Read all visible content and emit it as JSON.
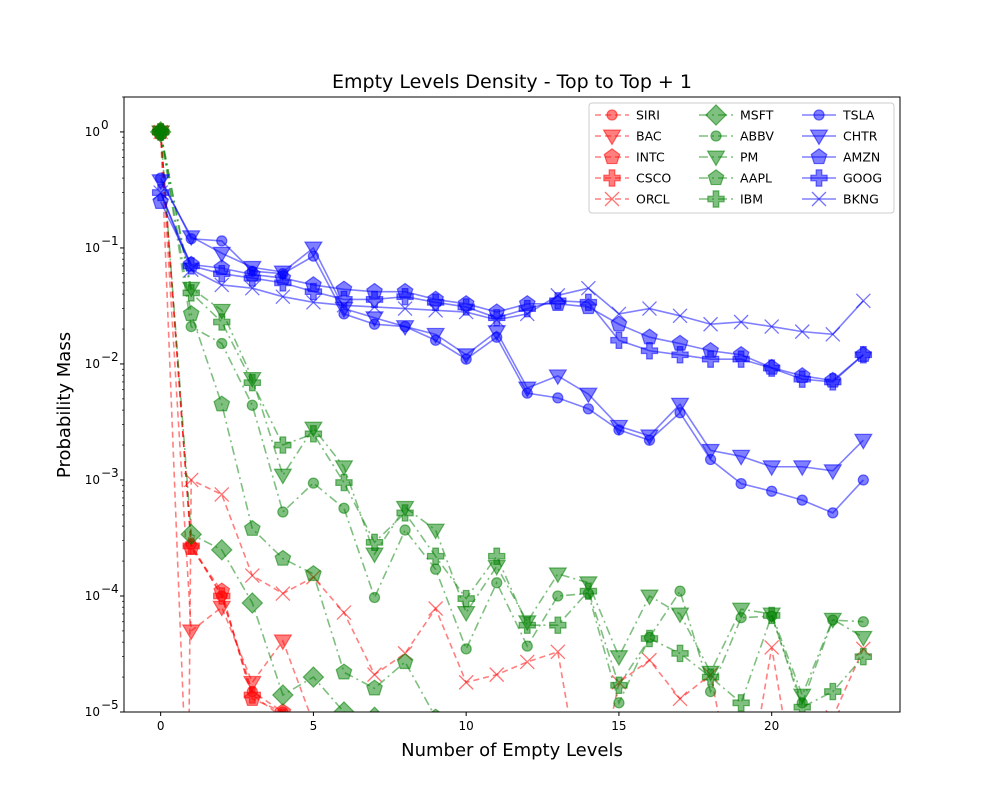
{
  "chart_data": {
    "type": "line",
    "title": "Empty Levels Density - Top to Top + 1",
    "xlabel": "Number of Empty Levels",
    "ylabel": "Probability Mass",
    "xlim": [
      -1.2,
      24.2
    ],
    "ylim": [
      1e-05,
      2
    ],
    "yscale": "log",
    "x_ticks": [
      0,
      5,
      10,
      15,
      20
    ],
    "y_ticks": [
      {
        "value": 1,
        "base": "10",
        "exp": "0"
      },
      {
        "value": 0.1,
        "base": "10",
        "exp": "−1"
      },
      {
        "value": 0.01,
        "base": "10",
        "exp": "−2"
      },
      {
        "value": 0.001,
        "base": "10",
        "exp": "−3"
      },
      {
        "value": 0.0001,
        "base": "10",
        "exp": "−4"
      },
      {
        "value": 1e-05,
        "base": "10",
        "exp": "−5"
      }
    ],
    "legend_position": "upper right",
    "series": [
      {
        "name": "SIRI",
        "color": "#ff0000",
        "dash": "dashed",
        "marker": "circle",
        "x": [
          0,
          1,
          2,
          3,
          4,
          5,
          6
        ],
        "y": [
          1.0,
          0.00028,
          0.0001,
          1.5e-05,
          1e-05,
          9e-06,
          8e-06
        ]
      },
      {
        "name": "BAC",
        "color": "#ff0000",
        "dash": "dashed",
        "marker": "triangle-down",
        "x": [
          0,
          1,
          2,
          3,
          4,
          5
        ],
        "y": [
          1.0,
          5e-05,
          8e-05,
          1.8e-05,
          4.1e-05,
          8e-06
        ]
      },
      {
        "name": "INTC",
        "color": "#ff0000",
        "dash": "dashed",
        "marker": "pentagon",
        "x": [
          0,
          1,
          2,
          3,
          4,
          5
        ],
        "y": [
          1.0,
          0.00026,
          0.00011,
          1.3e-05,
          1e-05,
          8e-06
        ]
      },
      {
        "name": "CSCO",
        "color": "#ff0000",
        "dash": "dashed",
        "marker": "plus",
        "x": [
          0,
          1,
          2,
          3,
          4,
          5
        ],
        "y": [
          1.0,
          0.00027,
          0.0001,
          1.4e-05,
          9e-06,
          8e-06
        ]
      },
      {
        "name": "ORCL",
        "color": "#ff0000",
        "dash": "dashed",
        "marker": "x",
        "x": [
          0,
          0.9,
          1,
          2,
          3,
          4,
          5,
          6,
          7,
          8,
          9,
          10,
          11,
          12,
          13,
          14,
          15,
          16,
          17,
          18,
          19,
          20,
          21,
          22,
          23
        ],
        "y": [
          1.0,
          1e-06,
          0.001,
          0.00075,
          0.00015,
          0.000105,
          0.000145,
          7.2e-05,
          2.1e-05,
          3.2e-05,
          7.8e-05,
          1.8e-05,
          2.1e-05,
          2.7e-05,
          3.3e-05,
          1e-06,
          1.8e-05,
          2.8e-05,
          1.3e-05,
          2.1e-05,
          1e-06,
          3.6e-05,
          1e-06,
          9e-06,
          3.5e-05
        ]
      },
      {
        "name": "MSFT",
        "color": "#008000",
        "dash": "dashdot",
        "marker": "diamond",
        "x": [
          0,
          1,
          2,
          3,
          4,
          5,
          6,
          7
        ],
        "y": [
          1.0,
          0.00034,
          0.00025,
          8.7e-05,
          1.4e-05,
          2e-05,
          1e-05,
          9e-06
        ]
      },
      {
        "name": "ABBV",
        "color": "#008000",
        "dash": "dashdot",
        "marker": "circle",
        "x": [
          0,
          1,
          2,
          3,
          4,
          5,
          6,
          7,
          8,
          9,
          10,
          11,
          12,
          13,
          14,
          15,
          16,
          17,
          18,
          19,
          20,
          21,
          22,
          23
        ],
        "y": [
          1.0,
          0.021,
          0.015,
          0.0044,
          0.00053,
          0.00094,
          0.00057,
          9.7e-05,
          0.00037,
          0.00017,
          3.5e-05,
          0.00013,
          3.7e-05,
          0.0001,
          0.000105,
          1.2e-05,
          4.4e-05,
          0.00011,
          1.5e-05,
          6.5e-05,
          6.7e-05,
          1.2e-05,
          6.2e-05,
          6e-05
        ]
      },
      {
        "name": "PM",
        "color": "#008000",
        "dash": "dashdot",
        "marker": "triangle-down",
        "x": [
          0,
          1,
          2,
          3,
          4,
          5,
          6,
          7,
          8,
          9,
          10,
          11,
          12,
          13,
          14,
          15,
          16,
          17,
          18,
          19,
          20,
          21,
          22,
          23
        ],
        "y": [
          1.0,
          0.045,
          0.029,
          0.0075,
          0.0011,
          0.0028,
          0.0013,
          0.00023,
          0.00058,
          0.00037,
          7.2e-05,
          0.00018,
          6e-05,
          0.000155,
          0.00013,
          3e-05,
          0.0001,
          7e-05,
          2.2e-05,
          7.7e-05,
          7e-05,
          1.4e-05,
          6.3e-05,
          4.4e-05
        ]
      },
      {
        "name": "AAPL",
        "color": "#008000",
        "dash": "dashdot",
        "marker": "pentagon",
        "x": [
          0,
          1,
          2,
          3,
          4,
          5,
          6,
          7,
          8,
          9,
          10
        ],
        "y": [
          1.0,
          0.027,
          0.0045,
          0.00038,
          0.00021,
          0.000155,
          2.2e-05,
          1.6e-05,
          2.7e-05,
          9e-06,
          1e-06
        ]
      },
      {
        "name": "IBM",
        "color": "#008000",
        "dash": "dashdot",
        "marker": "plus",
        "x": [
          0,
          1,
          2,
          3,
          4,
          5,
          6,
          7,
          8,
          9,
          10,
          11,
          12,
          13,
          14,
          15,
          16,
          17,
          18,
          19,
          20,
          21,
          22,
          23
        ],
        "y": [
          1.0,
          0.041,
          0.023,
          0.0069,
          0.002,
          0.0025,
          0.00095,
          0.00029,
          0.00052,
          0.00022,
          9.5e-05,
          0.00022,
          5.6e-05,
          5.6e-05,
          0.00011,
          1.7e-05,
          4.3e-05,
          3.2e-05,
          2e-05,
          1.2e-05,
          6.8e-05,
          1.1e-05,
          1.5e-05,
          3e-05
        ]
      },
      {
        "name": "TSLA",
        "color": "#0000ff",
        "dash": "solid",
        "marker": "circle",
        "x": [
          0,
          1,
          2,
          3,
          4,
          5,
          6,
          7,
          8,
          9,
          10,
          11,
          12,
          13,
          14,
          15,
          16,
          17,
          18,
          19,
          20,
          21,
          22,
          23
        ],
        "y": [
          0.4,
          0.12,
          0.115,
          0.063,
          0.06,
          0.085,
          0.027,
          0.022,
          0.021,
          0.016,
          0.011,
          0.017,
          0.0056,
          0.0051,
          0.0041,
          0.0027,
          0.0022,
          0.0038,
          0.0015,
          0.00093,
          0.0008,
          0.00067,
          0.00052,
          0.001
        ]
      },
      {
        "name": "CHTR",
        "color": "#0000ff",
        "dash": "solid",
        "marker": "triangle-down",
        "x": [
          0,
          1,
          2,
          3,
          4,
          5,
          6,
          7,
          8,
          9,
          10,
          11,
          12,
          13,
          14,
          15,
          16,
          17,
          18,
          19,
          20,
          21,
          22,
          23
        ],
        "y": [
          0.38,
          0.125,
          0.09,
          0.068,
          0.062,
          0.1,
          0.03,
          0.025,
          0.021,
          0.018,
          0.012,
          0.019,
          0.0062,
          0.0079,
          0.0055,
          0.0029,
          0.0024,
          0.0045,
          0.0018,
          0.0016,
          0.0013,
          0.0013,
          0.0012,
          0.0022
        ]
      },
      {
        "name": "AMZN",
        "color": "#0000ff",
        "dash": "solid",
        "marker": "pentagon",
        "x": [
          0,
          1,
          2,
          3,
          4,
          5,
          6,
          7,
          8,
          9,
          10,
          11,
          12,
          13,
          14,
          15,
          16,
          17,
          18,
          19,
          20,
          21,
          22,
          23
        ],
        "y": [
          0.25,
          0.072,
          0.067,
          0.059,
          0.055,
          0.048,
          0.044,
          0.042,
          0.042,
          0.036,
          0.033,
          0.028,
          0.033,
          0.033,
          0.031,
          0.022,
          0.017,
          0.015,
          0.013,
          0.012,
          0.0093,
          0.0079,
          0.0072,
          0.012
        ]
      },
      {
        "name": "GOOG",
        "color": "#0000ff",
        "dash": "solid",
        "marker": "plus",
        "x": [
          0,
          1,
          2,
          3,
          4,
          5,
          6,
          7,
          8,
          9,
          10,
          11,
          12,
          13,
          14,
          15,
          16,
          17,
          18,
          19,
          20,
          21,
          22,
          23
        ],
        "y": [
          0.3,
          0.07,
          0.06,
          0.055,
          0.05,
          0.042,
          0.036,
          0.036,
          0.038,
          0.034,
          0.031,
          0.025,
          0.03,
          0.035,
          0.034,
          0.016,
          0.013,
          0.012,
          0.011,
          0.011,
          0.0092,
          0.0074,
          0.007,
          0.012
        ]
      },
      {
        "name": "BKNG",
        "color": "#0000ff",
        "dash": "solid",
        "marker": "x",
        "x": [
          0,
          1,
          2,
          3,
          4,
          5,
          6,
          7,
          8,
          9,
          10,
          11,
          12,
          13,
          14,
          15,
          16,
          17,
          18,
          19,
          20,
          21,
          22,
          23
        ],
        "y": [
          0.3,
          0.065,
          0.048,
          0.045,
          0.038,
          0.034,
          0.032,
          0.031,
          0.03,
          0.029,
          0.028,
          0.024,
          0.027,
          0.039,
          0.045,
          0.027,
          0.03,
          0.026,
          0.022,
          0.023,
          0.021,
          0.019,
          0.018,
          0.035
        ]
      }
    ]
  }
}
